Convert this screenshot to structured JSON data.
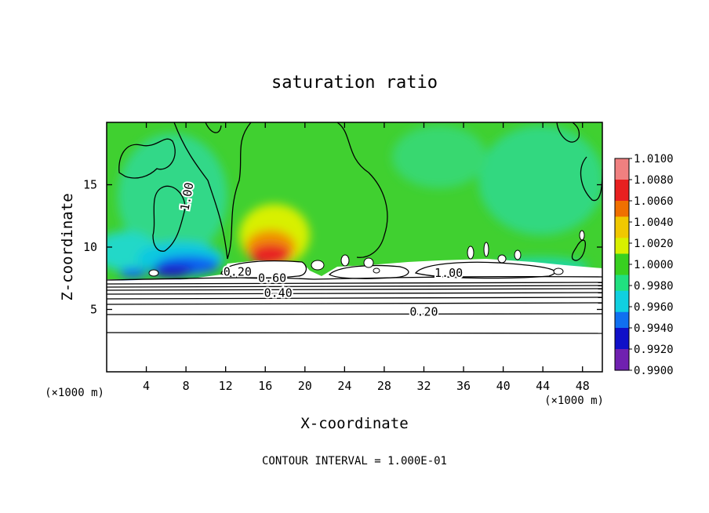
{
  "chart_data": {
    "type": "heatmap",
    "title": "saturation ratio",
    "xlabel": "X-coordinate",
    "ylabel": "Z-coordinate",
    "x_unit_left": "(×1000 m)",
    "x_unit_right": "(×1000 m)",
    "xlim": [
      0,
      50
    ],
    "ylim": [
      0,
      20
    ],
    "xticks": [
      "4",
      "8",
      "12",
      "16",
      "20",
      "24",
      "28",
      "32",
      "36",
      "40",
      "44",
      "48"
    ],
    "xtick_values": [
      4,
      8,
      12,
      16,
      20,
      24,
      28,
      32,
      36,
      40,
      44,
      48
    ],
    "yticks": [
      "5",
      "10",
      "15"
    ],
    "ytick_values": [
      5,
      10,
      15
    ],
    "colorbar": {
      "labels": [
        "1.0100",
        "1.0080",
        "1.0060",
        "1.0040",
        "1.0020",
        "1.0000",
        "0.9980",
        "0.9960",
        "0.9940",
        "0.9920",
        "0.9900"
      ],
      "colors": [
        "#f08080",
        "#e82020",
        "#f07000",
        "#f0c800",
        "#d8f000",
        "#38d020",
        "#20e080",
        "#10d0e0",
        "#1070f0",
        "#1010c8",
        "#7020b0"
      ]
    },
    "contour_labels": [
      {
        "text": "1.00",
        "x": 8.5,
        "z": 14.0,
        "rotate": -80
      },
      {
        "text": "1.00",
        "x": 34.5,
        "z": 7.6,
        "rotate": 0
      },
      {
        "text": "0.20",
        "x": 13.2,
        "z": 7.7,
        "rotate": 0
      },
      {
        "text": "0.60",
        "x": 16.7,
        "z": 7.2,
        "rotate": 0
      },
      {
        "text": "0.40",
        "x": 17.3,
        "z": 6.0,
        "rotate": 0
      },
      {
        "text": "0.20",
        "x": 32.0,
        "z": 4.5,
        "rotate": 0
      }
    ],
    "footer": "CONTOUR INTERVAL = 1.000E-01"
  }
}
